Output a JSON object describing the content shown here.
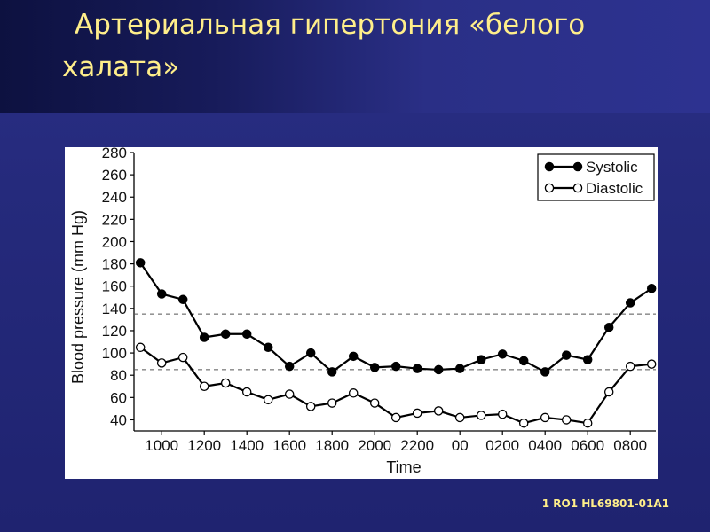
{
  "slide": {
    "title": "Артериальная гипертония «белого халата»",
    "footnote": "1 RO1 HL69801-01A1"
  },
  "chart_data": {
    "type": "line",
    "xlabel": "Time",
    "ylabel": "Blood pressure (mm Hg)",
    "ylim": [
      30,
      280
    ],
    "yticks": [
      40,
      60,
      80,
      100,
      120,
      140,
      160,
      180,
      200,
      220,
      240,
      260,
      280
    ],
    "xtick_labels": [
      "1000",
      "1200",
      "1400",
      "1600",
      "1800",
      "2000",
      "2200",
      "00",
      "0200",
      "0400",
      "0600",
      "0800"
    ],
    "x_ticks_hours": [
      10,
      12,
      14,
      16,
      18,
      20,
      22,
      24,
      26,
      28,
      30,
      32
    ],
    "x_hours": [
      9,
      10,
      11,
      12,
      13,
      14,
      15,
      16,
      17,
      18,
      19,
      20,
      21,
      22,
      23,
      24,
      25,
      26,
      27,
      28,
      29,
      30,
      31,
      32,
      33
    ],
    "xlim": [
      8.7,
      33.2
    ],
    "reference_lines": [
      135,
      85
    ],
    "grid": false,
    "legend_position": "top-right",
    "series": [
      {
        "name": "Systolic",
        "marker": "filled",
        "color": "#000000",
        "values": [
          181,
          153,
          148,
          114,
          117,
          117,
          105,
          88,
          100,
          83,
          97,
          87,
          88,
          86,
          85,
          86,
          94,
          99,
          93,
          83,
          98,
          94,
          123,
          145,
          158
        ]
      },
      {
        "name": "Diastolic",
        "marker": "open",
        "color": "#000000",
        "values": [
          105,
          91,
          96,
          70,
          73,
          65,
          58,
          63,
          52,
          55,
          64,
          55,
          42,
          46,
          48,
          42,
          44,
          45,
          37,
          42,
          40,
          37,
          65,
          88,
          90
        ]
      }
    ]
  }
}
